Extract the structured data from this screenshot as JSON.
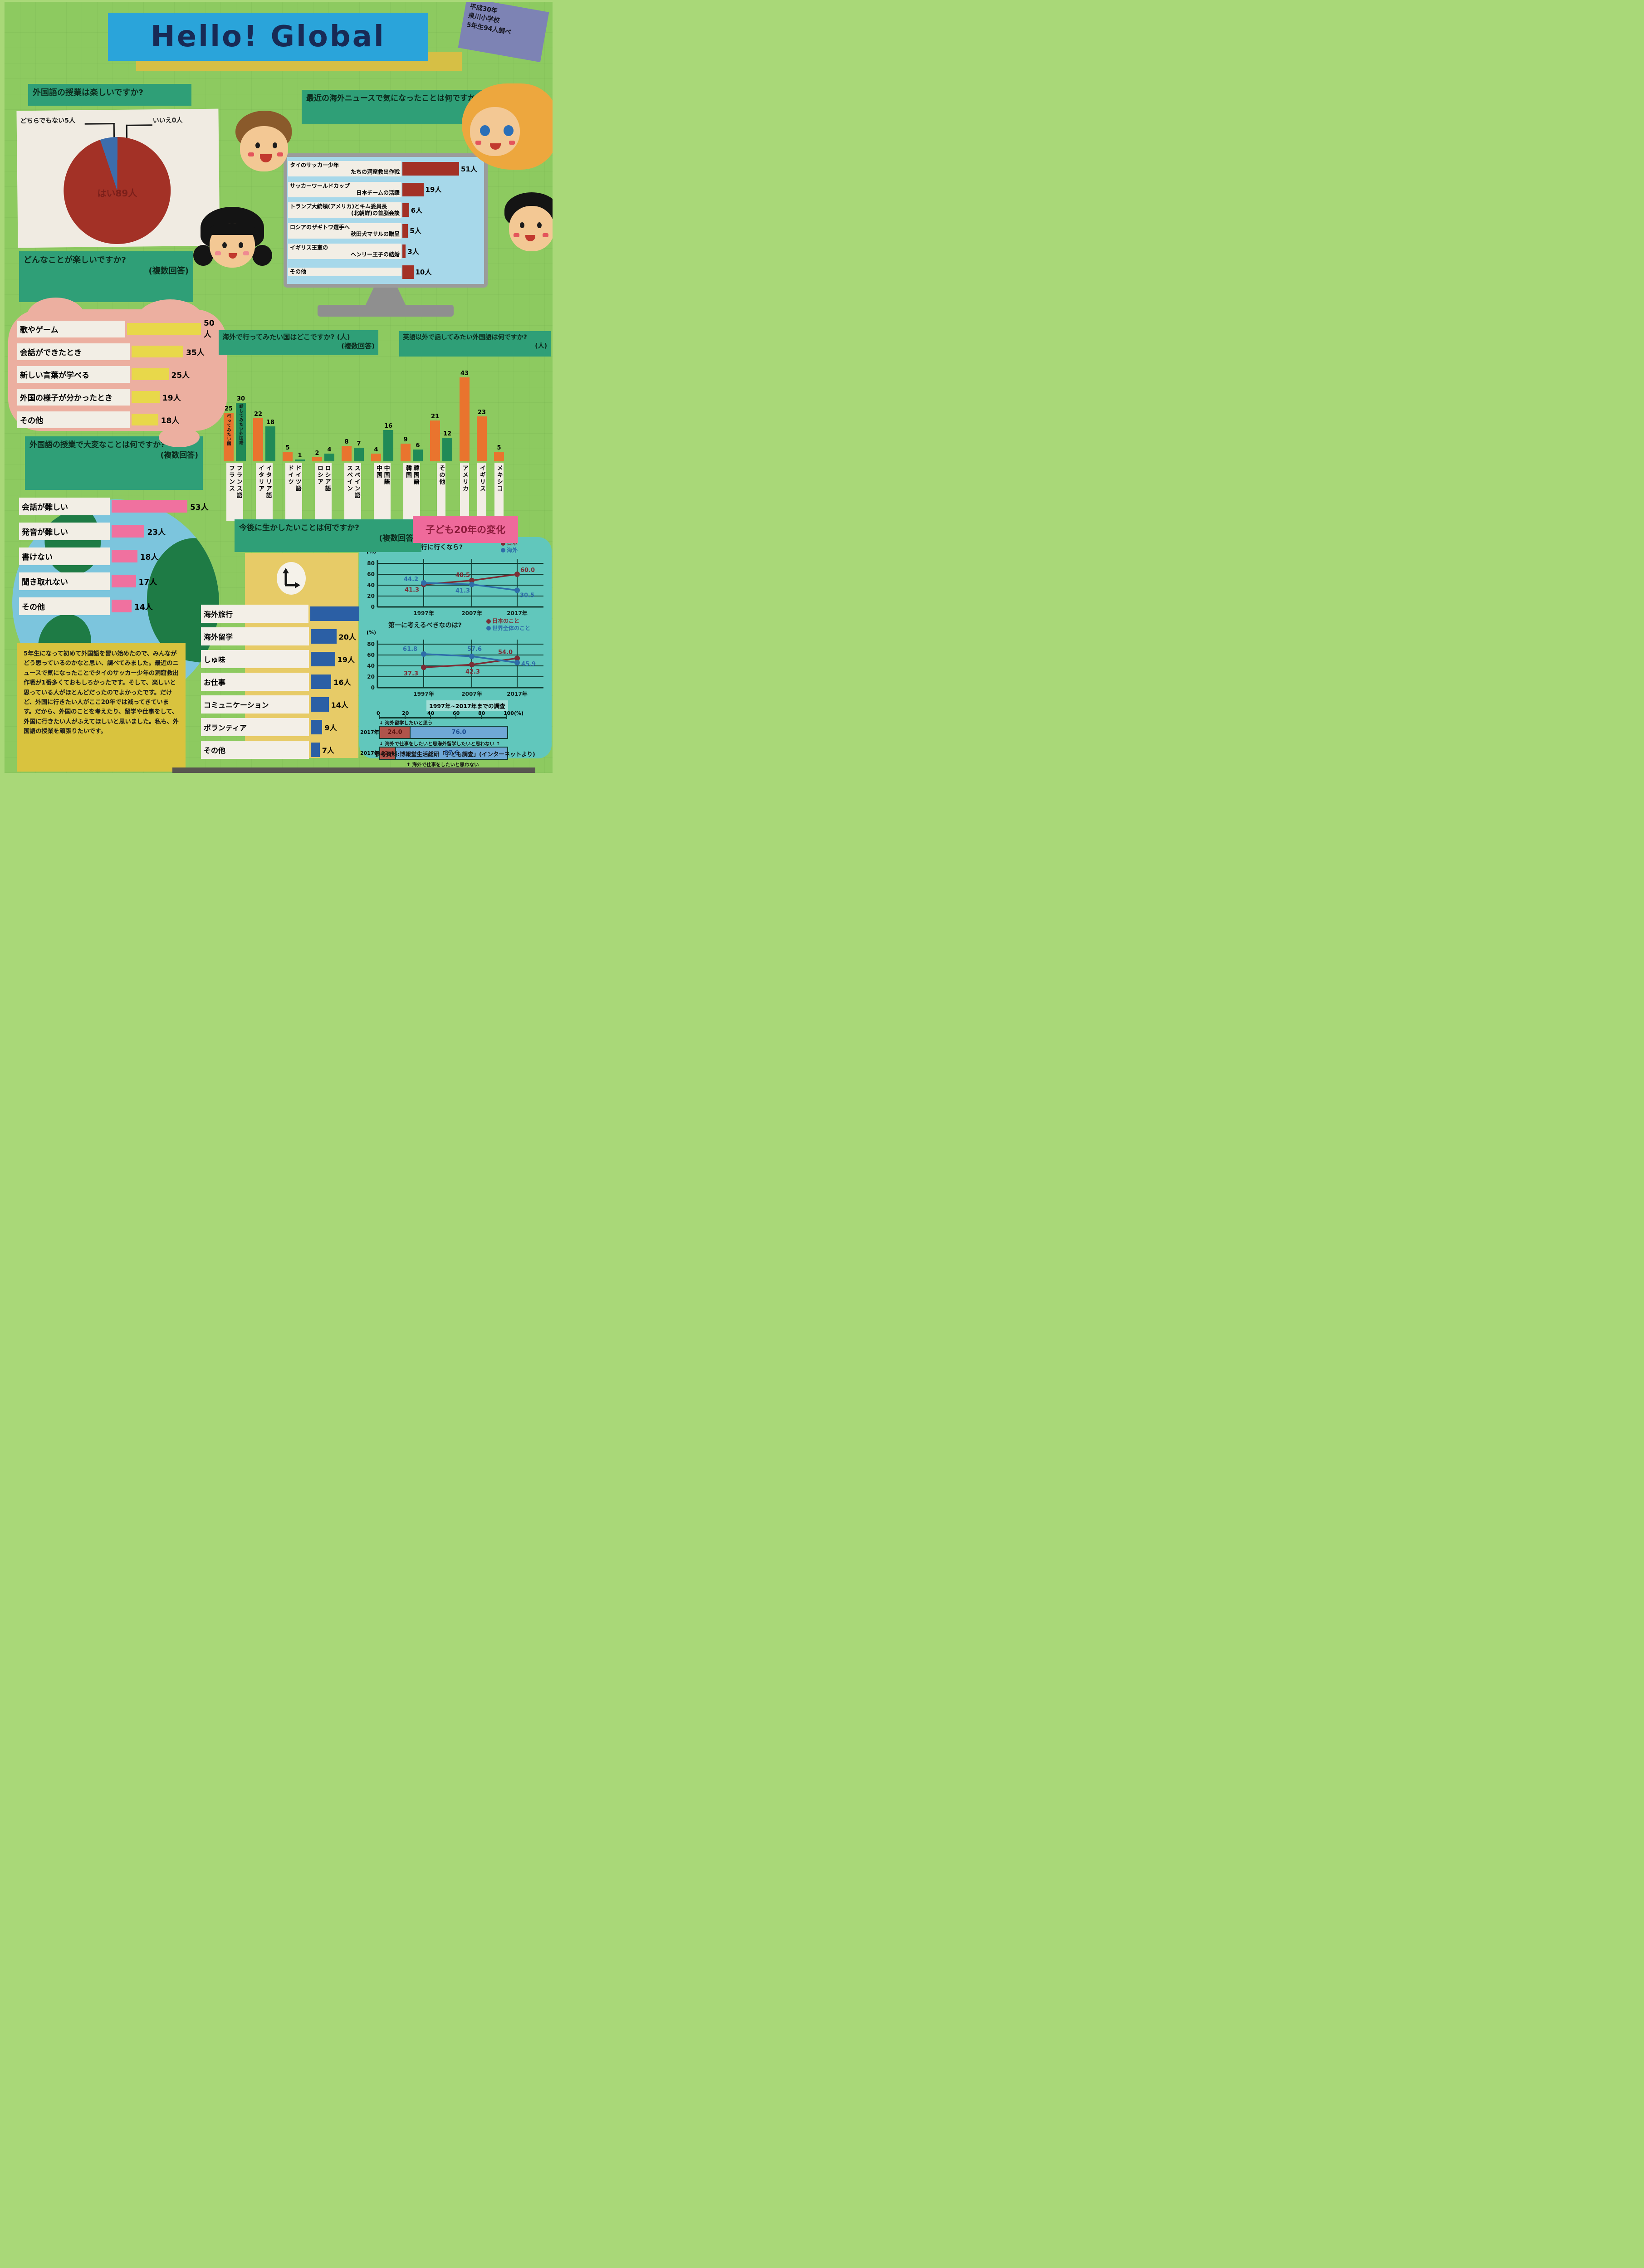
{
  "colors": {
    "header_blue": "#2aa4da",
    "title_navy": "#182a55",
    "banner_green": "#2f9f77",
    "dark_red": "#a33126",
    "yellow_bar": "#e8d84a",
    "pink_bar": "#f0719f",
    "orange_bar": "#e9742e",
    "green_bar": "#208a57",
    "blue_bar": "#2b5fa5",
    "line_japan_red": "#7b2d35",
    "line_overseas_blue": "#2e6da8",
    "stacked_red": "#b0544b",
    "stacked_blue": "#6fa8d6",
    "teal_panel": "#61c7bc",
    "pink_title": "#ef6a9b",
    "purple_note": "#7d83b4"
  },
  "poster": {
    "title": "Hello! Global",
    "note_line1": "平成30年",
    "note_line2": "泉川小学校",
    "note_line3": "5年生94人調べ"
  },
  "q_fun": {
    "question": "外国語の授業は楽しいですか?",
    "yes_label": "はい89人",
    "neither_label": "どちらでもない5人",
    "no_label": "いいえ0人"
  },
  "q_news": {
    "question": "最近の海外ニュースで気になったことは何ですか?",
    "items": [
      {
        "label_line1": "タイのサッカー少年",
        "label_line2": "たちの洞窟救出作戦",
        "value": 51,
        "value_label": "51人"
      },
      {
        "label_line1": "サッカーワールドカップ",
        "label_line2": "日本チームの活躍",
        "value": 19,
        "value_label": "19人"
      },
      {
        "label_line1": "トランプ大統領(アメリカ)とキム委員長",
        "label_line2": "(北朝鮮)の首脳会談",
        "value": 6,
        "value_label": "6人"
      },
      {
        "label_line1": "ロシアのザギトワ選手へ",
        "label_line2": "秋田犬マサルの贈呈",
        "value": 5,
        "value_label": "5人"
      },
      {
        "label_line1": "イギリス王室の",
        "label_line2": "ヘンリー王子の結婚",
        "value": 3,
        "value_label": "3人"
      },
      {
        "label_line1": "その他",
        "label_line2": "",
        "value": 10,
        "value_label": "10人"
      }
    ]
  },
  "q_enjoy": {
    "question_line1": "どんなことが楽しいですか?",
    "question_line2": "(複数回答)",
    "items": [
      {
        "label": "歌やゲーム",
        "value": 50,
        "value_label": "50人"
      },
      {
        "label": "会話ができたとき",
        "value": 35,
        "value_label": "35人"
      },
      {
        "label": "新しい言葉が学べる",
        "value": 25,
        "value_label": "25人"
      },
      {
        "label": "外国の様子が分かったとき",
        "value": 19,
        "value_label": "19人"
      },
      {
        "label": "その他",
        "value": 18,
        "value_label": "18人"
      }
    ]
  },
  "q_countries": {
    "question_left_line1": "海外で行ってみたい国はどこですか? (人)",
    "question_left_line2": "(複数回答)",
    "question_right_line1": "英語以外で話してみたい外国語は何ですか?",
    "question_right_line2": "(人)",
    "series_visit_label": "行ってみたい国",
    "series_speak_label": "話してみたい外国語",
    "groups": [
      {
        "country": "フランス",
        "language": "フランス語",
        "visit": 25,
        "speak": 30,
        "show_series_labels": true
      },
      {
        "country": "イタリア",
        "language": "イタリア語",
        "visit": 22,
        "speak": 18
      },
      {
        "country": "ドイツ",
        "language": "ドイツ語",
        "visit": 5,
        "speak": 1
      },
      {
        "country": "ロシア",
        "language": "ロシア語",
        "visit": 2,
        "speak": 4
      },
      {
        "country": "スペイン",
        "language": "スペイン語",
        "visit": 8,
        "speak": 7
      },
      {
        "country": "中国",
        "language": "中国語",
        "visit": 4,
        "speak": 16
      },
      {
        "country": "韓国",
        "language": "韓国語",
        "visit": 9,
        "speak": 6
      },
      {
        "label": "その他",
        "visit": 21,
        "speak": 12
      },
      {
        "label": "アメリカ",
        "visit": 43
      },
      {
        "label": "イギリス",
        "visit": 23
      },
      {
        "label": "メキシコ",
        "visit": 5
      }
    ]
  },
  "q_hard": {
    "question_line1": "外国語の授業で大変なことは何ですか?",
    "question_line2": "(複数回答)",
    "items": [
      {
        "label": "会話が難しい",
        "value": 53,
        "value_label": "53人"
      },
      {
        "label": "発音が難しい",
        "value": 23,
        "value_label": "23人"
      },
      {
        "label": "書けない",
        "value": 18,
        "value_label": "18人"
      },
      {
        "label": "聞き取れない",
        "value": 17,
        "value_label": "17人"
      },
      {
        "label": "その他",
        "value": 14,
        "value_label": "14人"
      }
    ]
  },
  "q_future": {
    "question_line1": "今後に生かしたいことは何ですか?",
    "question_line2": "(複数回答)",
    "items": [
      {
        "label": "海外旅行",
        "value": 48,
        "value_label": "48人"
      },
      {
        "label": "海外留学",
        "value": 20,
        "value_label": "20人"
      },
      {
        "label": "しゅ味",
        "value": 19,
        "value_label": "19人"
      },
      {
        "label": "お仕事",
        "value": 16,
        "value_label": "16人"
      },
      {
        "label": "コミュニケーション",
        "value": 14,
        "value_label": "14人"
      },
      {
        "label": "ボランティア",
        "value": 9,
        "value_label": "9人"
      },
      {
        "label": "その他",
        "value": 7,
        "value_label": "7人"
      }
    ]
  },
  "change20": {
    "title": "子ども20年の変化",
    "chart_travel": {
      "title": "家族で旅行に行くなら?",
      "unit": "(%)",
      "x": [
        "1997年",
        "2007年",
        "2017年"
      ],
      "yticks": [
        80,
        60,
        40,
        20,
        0
      ],
      "series": [
        {
          "name": "日本",
          "color": "#7b2d35",
          "values": [
            41.3,
            48.5,
            60.0
          ]
        },
        {
          "name": "海外",
          "color": "#2e6da8",
          "values": [
            44.2,
            41.3,
            30.5
          ]
        }
      ]
    },
    "chart_think": {
      "title": "第一に考えるべきなのは?",
      "unit": "(%)",
      "x": [
        "1997年",
        "2007年",
        "2017年"
      ],
      "yticks": [
        80,
        60,
        40,
        20,
        0
      ],
      "series": [
        {
          "name": "日本のこと",
          "color": "#7b2d35",
          "values": [
            37.3,
            42.3,
            54.0
          ]
        },
        {
          "name": "世界全体のこと",
          "color": "#2e6da8",
          "values": [
            61.8,
            57.6,
            45.9
          ]
        }
      ]
    },
    "survey_note": "1997年~2017年までの調査",
    "stacked": {
      "axis_ticks": [
        "0",
        "20",
        "40",
        "60",
        "80",
        "100(%)"
      ],
      "top_label": "海外留学したいと思う",
      "mid_label_left": "海外で仕事をしたいと思う",
      "mid_label_right": "海外留学したいと思わない",
      "bottom_label": "海外で仕事をしたいと思わない",
      "rows": [
        {
          "year": "2017年",
          "red": 24.0,
          "blue": 76.0,
          "red_label": "24.0",
          "blue_label": "76.0"
        },
        {
          "year": "2017年",
          "red": 12.4,
          "blue": 87.6,
          "red_label": "12.4",
          "blue_label": "87.6"
        }
      ]
    },
    "source": "参考資料:博報堂生活総研「子ども調査」(インターネットより)"
  },
  "summary_text": "5年生になって初めて外国語を習い始めたので、みんながどう思っているのかなと思い、調べてみました。最近のニュースで気になったことでタイのサッカー少年の洞窟救出作戦が1番多くておもしろかったです。そして、楽しいと思っている人がほとんどだったのでよかったです。だけど、外国に行きたい人がここ20年では減ってきています。だから、外国のことを考えたり、留学や仕事をして、外国に行きたい人がふえてほしいと思いました。私も、外国語の授業を頑張りたいです。",
  "chart_data": [
    {
      "type": "pie",
      "title": "外国語の授業は楽しいですか?",
      "categories": [
        "はい",
        "どちらでもない",
        "いいえ"
      ],
      "values": [
        89,
        5,
        0
      ],
      "unit": "人"
    },
    {
      "type": "bar",
      "orientation": "horizontal",
      "title": "最近の海外ニュースで気になったことは何ですか?",
      "categories": [
        "タイのサッカー少年たちの洞窟救出作戦",
        "サッカーワールドカップ日本チームの活躍",
        "トランプ大統領(アメリカ)とキム委員長(北朝鮮)の首脳会談",
        "ロシアのザギトワ選手へ秋田犬マサルの贈呈",
        "イギリス王室のヘンリー王子の結婚",
        "その他"
      ],
      "values": [
        51,
        19,
        6,
        5,
        3,
        10
      ],
      "unit": "人"
    },
    {
      "type": "bar",
      "orientation": "horizontal",
      "title": "どんなことが楽しいですか?(複数回答)",
      "categories": [
        "歌やゲーム",
        "会話ができたとき",
        "新しい言葉が学べる",
        "外国の様子が分かったとき",
        "その他"
      ],
      "values": [
        50,
        35,
        25,
        19,
        18
      ],
      "unit": "人"
    },
    {
      "type": "bar",
      "orientation": "vertical",
      "title": "海外で行ってみたい国はどこですか?(複数回答) / 英語以外で話してみたい外国語は何ですか?",
      "categories": [
        "フランス",
        "イタリア",
        "ドイツ",
        "ロシア",
        "スペイン",
        "中国",
        "韓国",
        "その他",
        "アメリカ",
        "イギリス",
        "メキシコ"
      ],
      "series": [
        {
          "name": "行ってみたい国",
          "values": [
            25,
            22,
            5,
            2,
            8,
            4,
            9,
            21,
            43,
            23,
            5
          ]
        },
        {
          "name": "話してみたい外国語",
          "values": [
            30,
            18,
            1,
            4,
            7,
            16,
            6,
            12,
            null,
            null,
            null
          ]
        }
      ],
      "unit": "人"
    },
    {
      "type": "bar",
      "orientation": "horizontal",
      "title": "外国語の授業で大変なことは何ですか?(複数回答)",
      "categories": [
        "会話が難しい",
        "発音が難しい",
        "書けない",
        "聞き取れない",
        "その他"
      ],
      "values": [
        53,
        23,
        18,
        17,
        14
      ],
      "unit": "人"
    },
    {
      "type": "bar",
      "orientation": "horizontal",
      "title": "今後に生かしたいことは何ですか?(複数回答)",
      "categories": [
        "海外旅行",
        "海外留学",
        "しゅ味",
        "お仕事",
        "コミュニケーション",
        "ボランティア",
        "その他"
      ],
      "values": [
        48,
        20,
        19,
        16,
        14,
        9,
        7
      ],
      "unit": "人"
    },
    {
      "type": "line",
      "title": "家族で旅行に行くなら?",
      "x": [
        "1997年",
        "2007年",
        "2017年"
      ],
      "ylabel": "%",
      "ylim": [
        0,
        80
      ],
      "series": [
        {
          "name": "日本",
          "values": [
            41.3,
            48.5,
            60.0
          ]
        },
        {
          "name": "海外",
          "values": [
            44.2,
            41.3,
            30.5
          ]
        }
      ]
    },
    {
      "type": "line",
      "title": "第一に考えるべきなのは?",
      "x": [
        "1997年",
        "2007年",
        "2017年"
      ],
      "ylabel": "%",
      "ylim": [
        0,
        80
      ],
      "series": [
        {
          "name": "日本のこと",
          "values": [
            37.3,
            42.3,
            54.0
          ]
        },
        {
          "name": "世界全体のこと",
          "values": [
            61.8,
            57.6,
            45.9
          ]
        }
      ]
    },
    {
      "type": "bar",
      "subtype": "stacked",
      "title": "1997年~2017年までの調査 (2017年)",
      "unit": "%",
      "rows": [
        {
          "year": "2017年",
          "segments": [
            "海外留学したいと思う",
            "海外留学したいと思わない"
          ],
          "values": [
            24.0,
            76.0
          ]
        },
        {
          "year": "2017年",
          "segments": [
            "海外で仕事をしたいと思う",
            "海外で仕事をしたいと思わない"
          ],
          "values": [
            12.4,
            87.6
          ]
        }
      ]
    }
  ]
}
